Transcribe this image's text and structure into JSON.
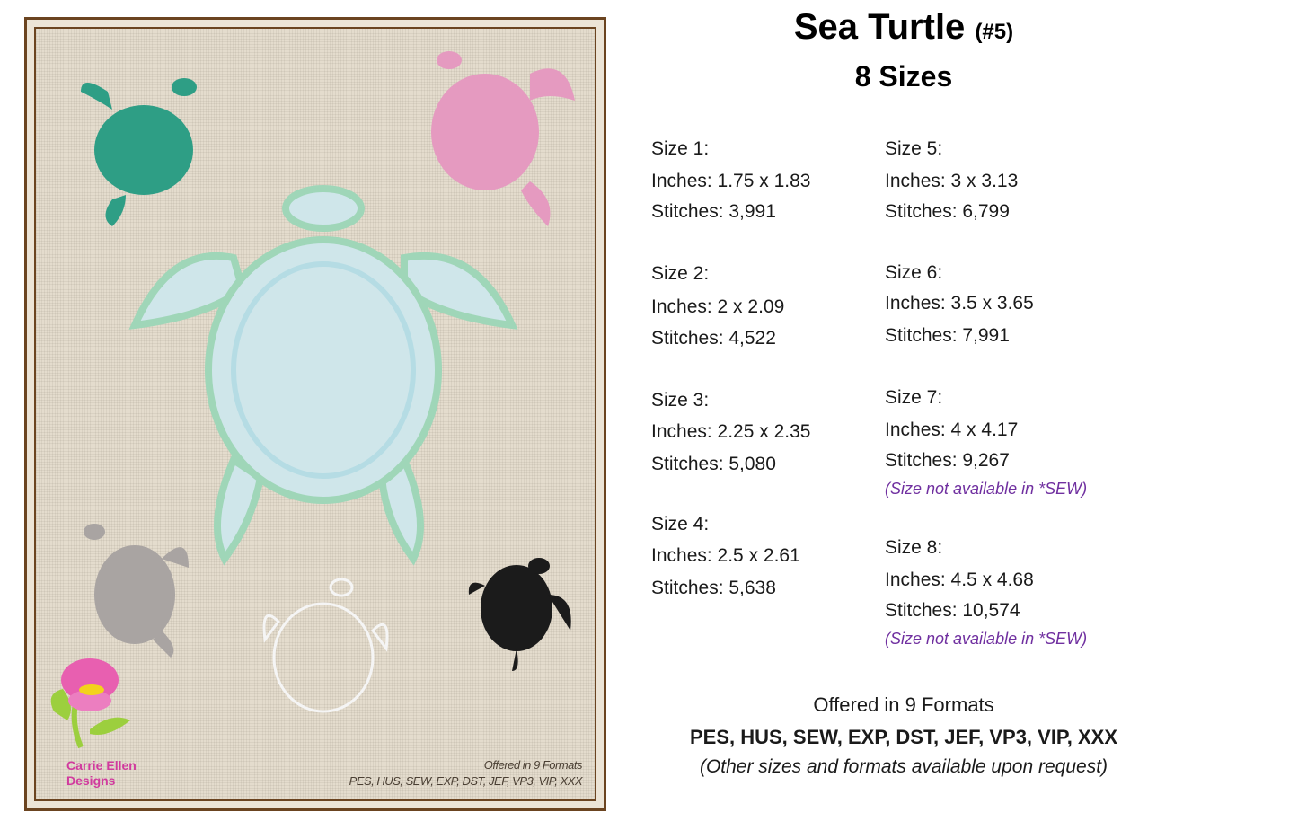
{
  "image": {
    "logo_text": [
      "Carrie Ellen",
      "Designs"
    ],
    "caption_line1": "Offered in 9 Formats",
    "caption_line2": "PES, HUS, SEW, EXP, DST, JEF, VP3, VIP, XXX",
    "frame_color": "#6b4420",
    "turtle_colors": [
      "#9fd6cc",
      "#2e9e85",
      "#e59ac0",
      "#a9a4a2",
      "#f3f3f3",
      "#1b1b1b"
    ]
  },
  "header": {
    "title": "Sea Turtle",
    "number": "(#5)",
    "subtitle": "8 Sizes"
  },
  "sizes": [
    {
      "label": "Size 1:",
      "inches": "Inches: 1.75 x 1.83",
      "stitches": "Stitches: 3,991",
      "note": ""
    },
    {
      "label": "Size 2:",
      "inches": "Inches: 2 x 2.09",
      "stitches": "Stitches: 4,522",
      "note": ""
    },
    {
      "label": "Size 3:",
      "inches": "Inches: 2.25 x 2.35",
      "stitches": "Stitches: 5,080",
      "note": ""
    },
    {
      "label": "Size 4:",
      "inches": "Inches: 2.5 x 2.61",
      "stitches": "Stitches: 5,638",
      "note": ""
    },
    {
      "label": "Size 5:",
      "inches": "Inches: 3 x 3.13",
      "stitches": "Stitches: 6,799",
      "note": ""
    },
    {
      "label": "Size 6:",
      "inches": "Inches: 3.5 x 3.65",
      "stitches": "Stitches: 7,991",
      "note": ""
    },
    {
      "label": "Size 7:",
      "inches": "Inches: 4 x 4.17",
      "stitches": "Stitches: 9,267",
      "note": "(Size not available in *SEW)"
    },
    {
      "label": "Size 8:",
      "inches": "Inches: 4.5 x 4.68",
      "stitches": "Stitches: 10,574",
      "note": "(Size not available in *SEW)"
    }
  ],
  "footer": {
    "offered": "Offered in 9 Formats",
    "formats": "PES, HUS, SEW, EXP, DST, JEF, VP3, VIP, XXX",
    "request": "(Other sizes and formats available upon request)"
  }
}
